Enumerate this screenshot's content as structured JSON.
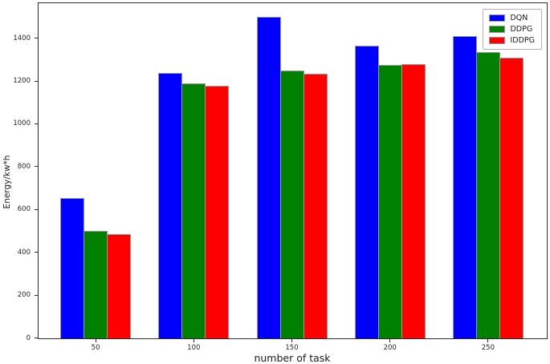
{
  "chart_data": {
    "type": "bar",
    "title": "",
    "xlabel": "number of task",
    "ylabel": "Energy/kw*h",
    "categories": [
      "50",
      "100",
      "150",
      "200",
      "250"
    ],
    "series": [
      {
        "name": "DQN",
        "color": "#0000ff",
        "values": [
          655,
          1240,
          1500,
          1365,
          1410
        ]
      },
      {
        "name": "DDPG",
        "color": "#008000",
        "values": [
          500,
          1190,
          1250,
          1275,
          1335
        ]
      },
      {
        "name": "IDDPG",
        "color": "#ff0000",
        "values": [
          485,
          1180,
          1235,
          1280,
          1310
        ]
      }
    ],
    "ylim": [
      0,
      1565
    ],
    "yticks": [
      0,
      200,
      400,
      600,
      800,
      1000,
      1200,
      1400
    ],
    "legend_position": "upper right",
    "grid": false,
    "bar_edge_color": "#9a9a9a",
    "spine_color": "#2b2b2b",
    "background_color": "#ffffff"
  }
}
